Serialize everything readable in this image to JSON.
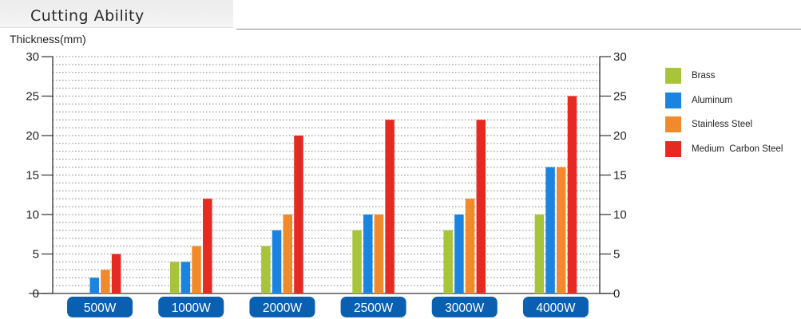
{
  "header": {
    "title": "Cutting Ability"
  },
  "chart_data": {
    "type": "bar",
    "title": "Cutting Ability",
    "ylabel": "Thickness(mm)",
    "xlabel": "",
    "ylim": [
      0,
      30
    ],
    "yticks": [
      0,
      5,
      10,
      15,
      20,
      25,
      30
    ],
    "grid": true,
    "legend_position": "right",
    "categories": [
      "500W",
      "1000W",
      "2000W",
      "2500W",
      "3000W",
      "4000W"
    ],
    "series": [
      {
        "name": "Brass",
        "color": "#a8c43a",
        "values": [
          0,
          4,
          6,
          8,
          8,
          10
        ]
      },
      {
        "name": "Aluminum",
        "color": "#1a84e0",
        "values": [
          2,
          4,
          8,
          10,
          10,
          16
        ]
      },
      {
        "name": "Stainless Steel",
        "color": "#f08a2a",
        "values": [
          3,
          6,
          10,
          10,
          12,
          16
        ]
      },
      {
        "name": "Medium  Carbon Steel",
        "color": "#e52a22",
        "values": [
          5,
          12,
          20,
          22,
          22,
          25
        ]
      }
    ],
    "category_badge_color": "#0b5fb0"
  }
}
